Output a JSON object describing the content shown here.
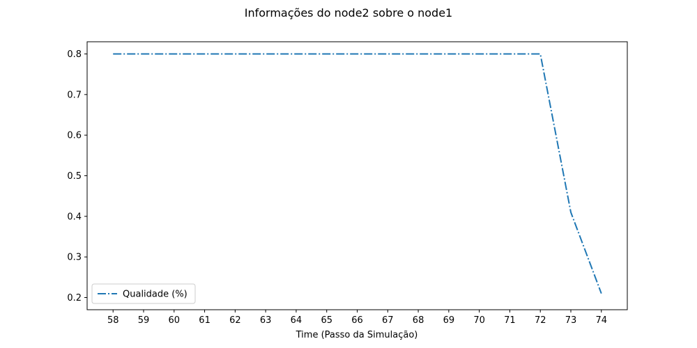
{
  "chart_data": {
    "type": "line",
    "title": "Informações do node2 sobre o node1",
    "xlabel": "Time (Passo da Simulação)",
    "ylabel": "",
    "x": [
      58,
      59,
      60,
      61,
      62,
      63,
      64,
      65,
      66,
      67,
      68,
      69,
      70,
      71,
      72,
      73,
      74
    ],
    "xlim": [
      57.15,
      74.85
    ],
    "ylim": [
      0.17,
      0.83
    ],
    "xticks": [
      58,
      59,
      60,
      61,
      62,
      63,
      64,
      65,
      66,
      67,
      68,
      69,
      70,
      71,
      72,
      73,
      74
    ],
    "xtick_labels": [
      "58",
      "59",
      "60",
      "61",
      "62",
      "63",
      "64",
      "65",
      "66",
      "67",
      "68",
      "69",
      "70",
      "71",
      "72",
      "73",
      "74"
    ],
    "yticks": [
      0.2,
      0.3,
      0.4,
      0.5,
      0.6,
      0.7,
      0.8
    ],
    "ytick_labels": [
      "0.2",
      "0.3",
      "0.4",
      "0.5",
      "0.6",
      "0.7",
      "0.8"
    ],
    "grid": false,
    "legend_position": "lower-left",
    "series": [
      {
        "name": "Qualidade (%)",
        "color": "#1f77b4",
        "line_style": "dash-dot",
        "values": [
          0.8,
          0.8,
          0.8,
          0.8,
          0.8,
          0.8,
          0.8,
          0.8,
          0.8,
          0.8,
          0.8,
          0.8,
          0.8,
          0.8,
          0.8,
          0.41,
          0.21
        ]
      }
    ]
  }
}
